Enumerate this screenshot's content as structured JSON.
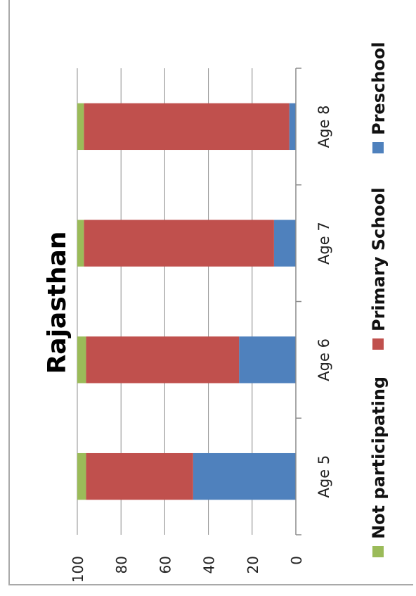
{
  "chart_data": {
    "type": "bar",
    "orientation": "stacked-bar, rotated 90°",
    "title": "Rajasthan",
    "categories": [
      "Age 5",
      "Age 6",
      "Age 7",
      "Age 8"
    ],
    "series": [
      {
        "name": "Preschool",
        "color": "#4f81bd",
        "values": [
          47,
          26,
          10,
          3
        ]
      },
      {
        "name": "Primary School",
        "color": "#c0504d",
        "values": [
          49,
          70,
          87,
          94
        ]
      },
      {
        "name": "Not participating",
        "color": "#9bbb59",
        "values": [
          4,
          4,
          3,
          3
        ]
      }
    ],
    "ylim": [
      0,
      100
    ],
    "yticks": [
      "0",
      "20",
      "40",
      "60",
      "80",
      "100"
    ],
    "grid": true,
    "legend_position": "bottom"
  }
}
